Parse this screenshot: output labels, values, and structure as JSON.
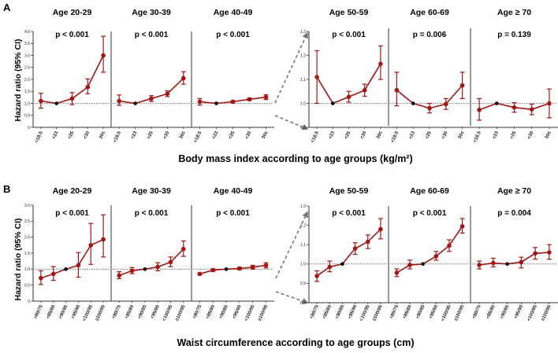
{
  "chart_data": [
    {
      "type": "line",
      "panel_label": "A",
      "xlabel": "Body mass index according to age groups (kg/m²)",
      "ylabel": "Hazard ratio (95% CI)",
      "colors": {
        "series": "#a31515",
        "reference": "#000000",
        "divider": "#555555"
      },
      "groups": [
        {
          "title": "Age 20-29",
          "p": "p < 0.001",
          "ylim": [
            0,
            4
          ],
          "yticks": [
            "0",
            "0.5",
            "1.0",
            "1.5",
            "2.0",
            "2.5",
            "3.0",
            "3.5",
            "4.0"
          ],
          "categories": [
            "<18.5",
            "<23",
            "<25",
            "<30",
            "30≤"
          ],
          "ref_index": 1,
          "values": [
            1.1,
            1.0,
            1.2,
            1.68,
            3.0
          ],
          "lower": [
            0.8,
            1.0,
            0.95,
            1.4,
            2.3
          ],
          "upper": [
            1.42,
            1.0,
            1.45,
            2.02,
            3.8
          ]
        },
        {
          "title": "Age 30-39",
          "p": "p < 0.001",
          "ylim": [
            0,
            4
          ],
          "yticks": [],
          "categories": [
            "<18.5",
            "<23",
            "<25",
            "<30",
            "30≤"
          ],
          "ref_index": 1,
          "values": [
            1.1,
            1.0,
            1.2,
            1.4,
            2.05
          ],
          "lower": [
            0.92,
            1.0,
            1.08,
            1.28,
            1.8
          ],
          "upper": [
            1.35,
            1.0,
            1.32,
            1.52,
            2.32
          ]
        },
        {
          "title": "Age 40-49",
          "p": "p < 0.001",
          "ylim": [
            0,
            4
          ],
          "yticks": [],
          "categories": [
            "<18.5",
            "<23",
            "<25",
            "<30",
            "30≤"
          ],
          "ref_index": 1,
          "values": [
            1.07,
            1.0,
            1.07,
            1.17,
            1.26
          ],
          "lower": [
            0.93,
            1.0,
            1.02,
            1.12,
            1.16
          ],
          "upper": [
            1.2,
            1.0,
            1.12,
            1.22,
            1.36
          ]
        },
        {
          "title": "Age 50-59",
          "p": "p < 0.001",
          "ylim": [
            0.9,
            1.3
          ],
          "yticks": [
            "0.9",
            "1.0",
            "1.1",
            "1.2",
            "1.3"
          ],
          "categories": [
            "<18.5",
            "<23",
            "<25",
            "<30",
            "30≤"
          ],
          "ref_index": 1,
          "values": [
            1.11,
            1.0,
            1.027,
            1.055,
            1.165
          ],
          "lower": [
            1.0,
            1.0,
            1.005,
            1.03,
            1.1
          ],
          "upper": [
            1.22,
            1.0,
            1.05,
            1.08,
            1.24
          ]
        },
        {
          "title": "Age 60-69",
          "p": "p = 0.006",
          "ylim": [
            0.9,
            1.3
          ],
          "yticks": [],
          "categories": [
            "<18.5",
            "<23",
            "<25",
            "<30",
            "30≤"
          ],
          "ref_index": 1,
          "values": [
            1.055,
            1.0,
            0.98,
            0.997,
            1.075
          ],
          "lower": [
            0.99,
            1.0,
            0.96,
            0.975,
            1.02
          ],
          "upper": [
            1.13,
            1.0,
            1.0,
            1.02,
            1.13
          ]
        },
        {
          "title": "Age ≥ 70",
          "p": "p = 0.139",
          "ylim": [
            0.9,
            1.3
          ],
          "yticks": [],
          "categories": [
            "<18.5",
            "<23",
            "<25",
            "<30",
            "30≤"
          ],
          "ref_index": 1,
          "values": [
            0.973,
            1.0,
            0.983,
            0.975,
            1.0
          ],
          "lower": [
            0.93,
            1.0,
            0.963,
            0.953,
            0.94
          ],
          "upper": [
            1.02,
            1.0,
            1.003,
            0.997,
            1.06
          ]
        }
      ]
    },
    {
      "type": "line",
      "panel_label": "B",
      "xlabel": "Waist circumference according to age groups (cm)",
      "ylabel": "Hazard ratio (95% CI)",
      "colors": {
        "series": "#a31515",
        "reference": "#000000",
        "divider": "#555555"
      },
      "groups": [
        {
          "title": "Age 20-29",
          "p": "p < 0.001",
          "ylim": [
            0,
            3
          ],
          "yticks": [
            "0",
            "0.5",
            "1.0",
            "1.5",
            "2.0",
            "2.5",
            "3.0"
          ],
          "categories": [
            "<80/75",
            "<85/80",
            "<90/85",
            "<95/90",
            "<100/95",
            "≥100/95"
          ],
          "ref_index": 2,
          "values": [
            0.72,
            0.85,
            1.0,
            1.12,
            1.75,
            1.93
          ],
          "lower": [
            0.52,
            0.65,
            1.0,
            0.75,
            1.15,
            1.38
          ],
          "upper": [
            0.95,
            1.08,
            1.0,
            1.52,
            2.43,
            2.7
          ]
        },
        {
          "title": "Age 30-39",
          "p": "p < 0.001",
          "ylim": [
            0,
            3
          ],
          "yticks": [],
          "categories": [
            "<80/75",
            "<85/80",
            "<90/85",
            "<95/90",
            "<100/95",
            "≥100/95"
          ],
          "ref_index": 2,
          "values": [
            0.8,
            0.95,
            1.0,
            1.07,
            1.22,
            1.63
          ],
          "lower": [
            0.7,
            0.86,
            1.0,
            0.95,
            1.08,
            1.4
          ],
          "upper": [
            0.92,
            1.05,
            1.0,
            1.2,
            1.38,
            1.88
          ]
        },
        {
          "title": "Age 40-49",
          "p": "p < 0.001",
          "ylim": [
            0,
            3
          ],
          "yticks": [],
          "categories": [
            "<80/75",
            "<85/80",
            "<90/85",
            "<95/90",
            "<100/95",
            "≥100/95"
          ],
          "ref_index": 2,
          "values": [
            0.85,
            0.97,
            1.0,
            1.02,
            1.06,
            1.12
          ],
          "lower": [
            0.82,
            0.93,
            1.0,
            0.98,
            1.0,
            1.04
          ],
          "upper": [
            0.88,
            1.01,
            1.0,
            1.06,
            1.12,
            1.2
          ]
        },
        {
          "title": "Age 50-59",
          "p": "p < 0.001",
          "ylim": [
            0.8,
            1.3
          ],
          "yticks": [
            "0.8",
            "0.9",
            "1.0",
            "1.1",
            "1.2",
            "1.3"
          ],
          "categories": [
            "<80/75",
            "<85/80",
            "<90/85",
            "<95/90",
            "<100/95",
            "≥100/95"
          ],
          "ref_index": 2,
          "values": [
            0.938,
            0.985,
            1.0,
            1.08,
            1.115,
            1.18
          ],
          "lower": [
            0.91,
            0.96,
            1.0,
            1.05,
            1.08,
            1.13
          ],
          "upper": [
            0.965,
            1.015,
            1.0,
            1.11,
            1.15,
            1.235
          ]
        },
        {
          "title": "Age 60-69",
          "p": "p < 0.001",
          "ylim": [
            0.8,
            1.3
          ],
          "yticks": [],
          "categories": [
            "<80/75",
            "<85/80",
            "<90/85",
            "<95/90",
            "<100/95",
            "≥100/95"
          ],
          "ref_index": 2,
          "values": [
            0.955,
            0.995,
            1.0,
            1.04,
            1.095,
            1.195
          ],
          "lower": [
            0.935,
            0.975,
            1.0,
            1.02,
            1.065,
            1.16
          ],
          "upper": [
            0.975,
            1.02,
            1.0,
            1.065,
            1.125,
            1.235
          ]
        },
        {
          "title": "Age ≥ 70",
          "p": "p = 0.004",
          "ylim": [
            0.8,
            1.3
          ],
          "yticks": [],
          "categories": [
            "<80/75",
            "<85/80",
            "<90/85",
            "<95/90",
            "<100/95",
            "≥100/95"
          ],
          "ref_index": 2,
          "values": [
            0.995,
            1.005,
            1.0,
            1.01,
            1.055,
            1.06
          ],
          "lower": [
            0.975,
            0.985,
            1.0,
            0.98,
            1.025,
            1.025
          ],
          "upper": [
            1.015,
            1.03,
            1.0,
            1.035,
            1.085,
            1.1
          ]
        }
      ]
    }
  ]
}
